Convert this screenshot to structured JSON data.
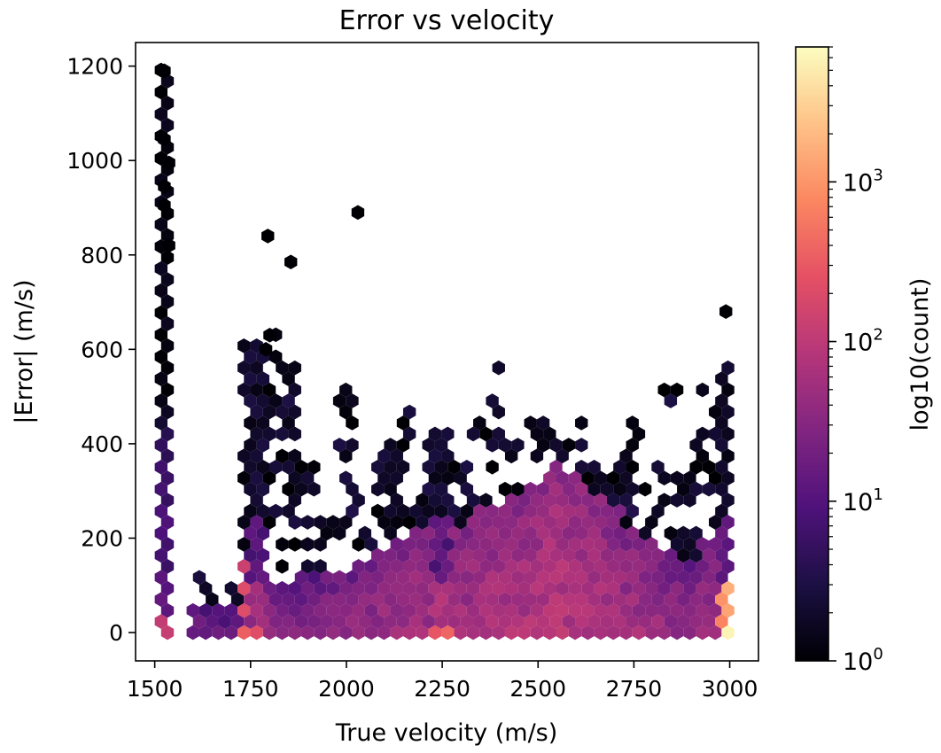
{
  "chart_data": {
    "type": "heatmap",
    "subtype": "hexbin",
    "title": "Error vs velocity",
    "xlabel": "True velocity (m/s)",
    "ylabel": "|Error| (m/s)",
    "colorbar_label": "log10(count)",
    "xlim": [
      1450,
      3075
    ],
    "ylim": [
      -60,
      1250
    ],
    "xticks": [
      1500,
      1750,
      2000,
      2250,
      2500,
      2750,
      3000
    ],
    "yticks": [
      0,
      200,
      400,
      600,
      800,
      1000,
      1200
    ],
    "xtick_labels": [
      "1500",
      "1750",
      "2000",
      "2250",
      "2500",
      "2750",
      "3000"
    ],
    "ytick_labels": [
      "0",
      "200",
      "400",
      "600",
      "800",
      "1000",
      "1200"
    ],
    "colorbar": {
      "scale": "log",
      "range": [
        1,
        7000
      ],
      "ticks": [
        {
          "base": "10",
          "exp": "0",
          "value": 1
        },
        {
          "base": "10",
          "exp": "1",
          "value": 10
        },
        {
          "base": "10",
          "exp": "2",
          "value": 100
        },
        {
          "base": "10",
          "exp": "3",
          "value": 1000
        }
      ],
      "colormap": "magma"
    },
    "grid": false,
    "columns": [
      {
        "x": 1525,
        "ymax": 1190,
        "dense": 460,
        "mid": 60
      },
      {
        "x": 1612,
        "ymax": 125,
        "dense": 70,
        "mid": 15
      },
      {
        "x": 1650,
        "ymax": 95,
        "dense": 60,
        "mid": 10
      },
      {
        "x": 1700,
        "ymax": 105,
        "dense": 60,
        "mid": 12
      },
      {
        "x": 1765,
        "ymax": 600,
        "dense": 180,
        "mid": 300
      },
      {
        "x": 1800,
        "ymax": 630,
        "dense": 100,
        "mid": 30
      },
      {
        "x": 1850,
        "ymax": 560,
        "dense": 110,
        "mid": 25
      },
      {
        "x": 1900,
        "ymax": 360,
        "dense": 120,
        "mid": 25
      },
      {
        "x": 1950,
        "ymax": 270,
        "dense": 130,
        "mid": 30
      },
      {
        "x": 2000,
        "ymax": 520,
        "dense": 140,
        "mid": 35
      },
      {
        "x": 2050,
        "ymax": 310,
        "dense": 160,
        "mid": 40
      },
      {
        "x": 2100,
        "ymax": 400,
        "dense": 180,
        "mid": 45
      },
      {
        "x": 2150,
        "ymax": 540,
        "dense": 200,
        "mid": 50
      },
      {
        "x": 2200,
        "ymax": 410,
        "dense": 220,
        "mid": 55
      },
      {
        "x": 2250,
        "ymax": 420,
        "dense": 300,
        "mid": 400
      },
      {
        "x": 2300,
        "ymax": 380,
        "dense": 230,
        "mid": 60
      },
      {
        "x": 2350,
        "ymax": 440,
        "dense": 260,
        "mid": 65
      },
      {
        "x": 2400,
        "ymax": 560,
        "dense": 280,
        "mid": 70
      },
      {
        "x": 2450,
        "ymax": 410,
        "dense": 300,
        "mid": 75
      },
      {
        "x": 2500,
        "ymax": 455,
        "dense": 320,
        "mid": 80
      },
      {
        "x": 2550,
        "ymax": 455,
        "dense": 360,
        "mid": 90
      },
      {
        "x": 2600,
        "ymax": 450,
        "dense": 330,
        "mid": 80
      },
      {
        "x": 2650,
        "ymax": 400,
        "dense": 300,
        "mid": 70
      },
      {
        "x": 2700,
        "ymax": 350,
        "dense": 260,
        "mid": 60
      },
      {
        "x": 2750,
        "ymax": 450,
        "dense": 230,
        "mid": 55
      },
      {
        "x": 2800,
        "ymax": 350,
        "dense": 210,
        "mid": 45
      },
      {
        "x": 2850,
        "ymax": 505,
        "dense": 180,
        "mid": 35
      },
      {
        "x": 2900,
        "ymax": 420,
        "dense": 160,
        "mid": 30
      },
      {
        "x": 2950,
        "ymax": 525,
        "dense": 200,
        "mid": 40
      },
      {
        "x": 2990,
        "ymax": 560,
        "dense": 380,
        "mid": 7000
      }
    ],
    "outliers": [
      {
        "x": 1525,
        "y": 1190
      },
      {
        "x": 1525,
        "y": 1045
      },
      {
        "x": 1537,
        "y": 995
      },
      {
        "x": 1525,
        "y": 945
      },
      {
        "x": 1525,
        "y": 905
      },
      {
        "x": 1537,
        "y": 820
      },
      {
        "x": 1795,
        "y": 840
      },
      {
        "x": 2030,
        "y": 890
      },
      {
        "x": 1855,
        "y": 785
      },
      {
        "x": 2990,
        "y": 680
      },
      {
        "x": 1800,
        "y": 630
      },
      {
        "x": 1790,
        "y": 600
      }
    ]
  }
}
